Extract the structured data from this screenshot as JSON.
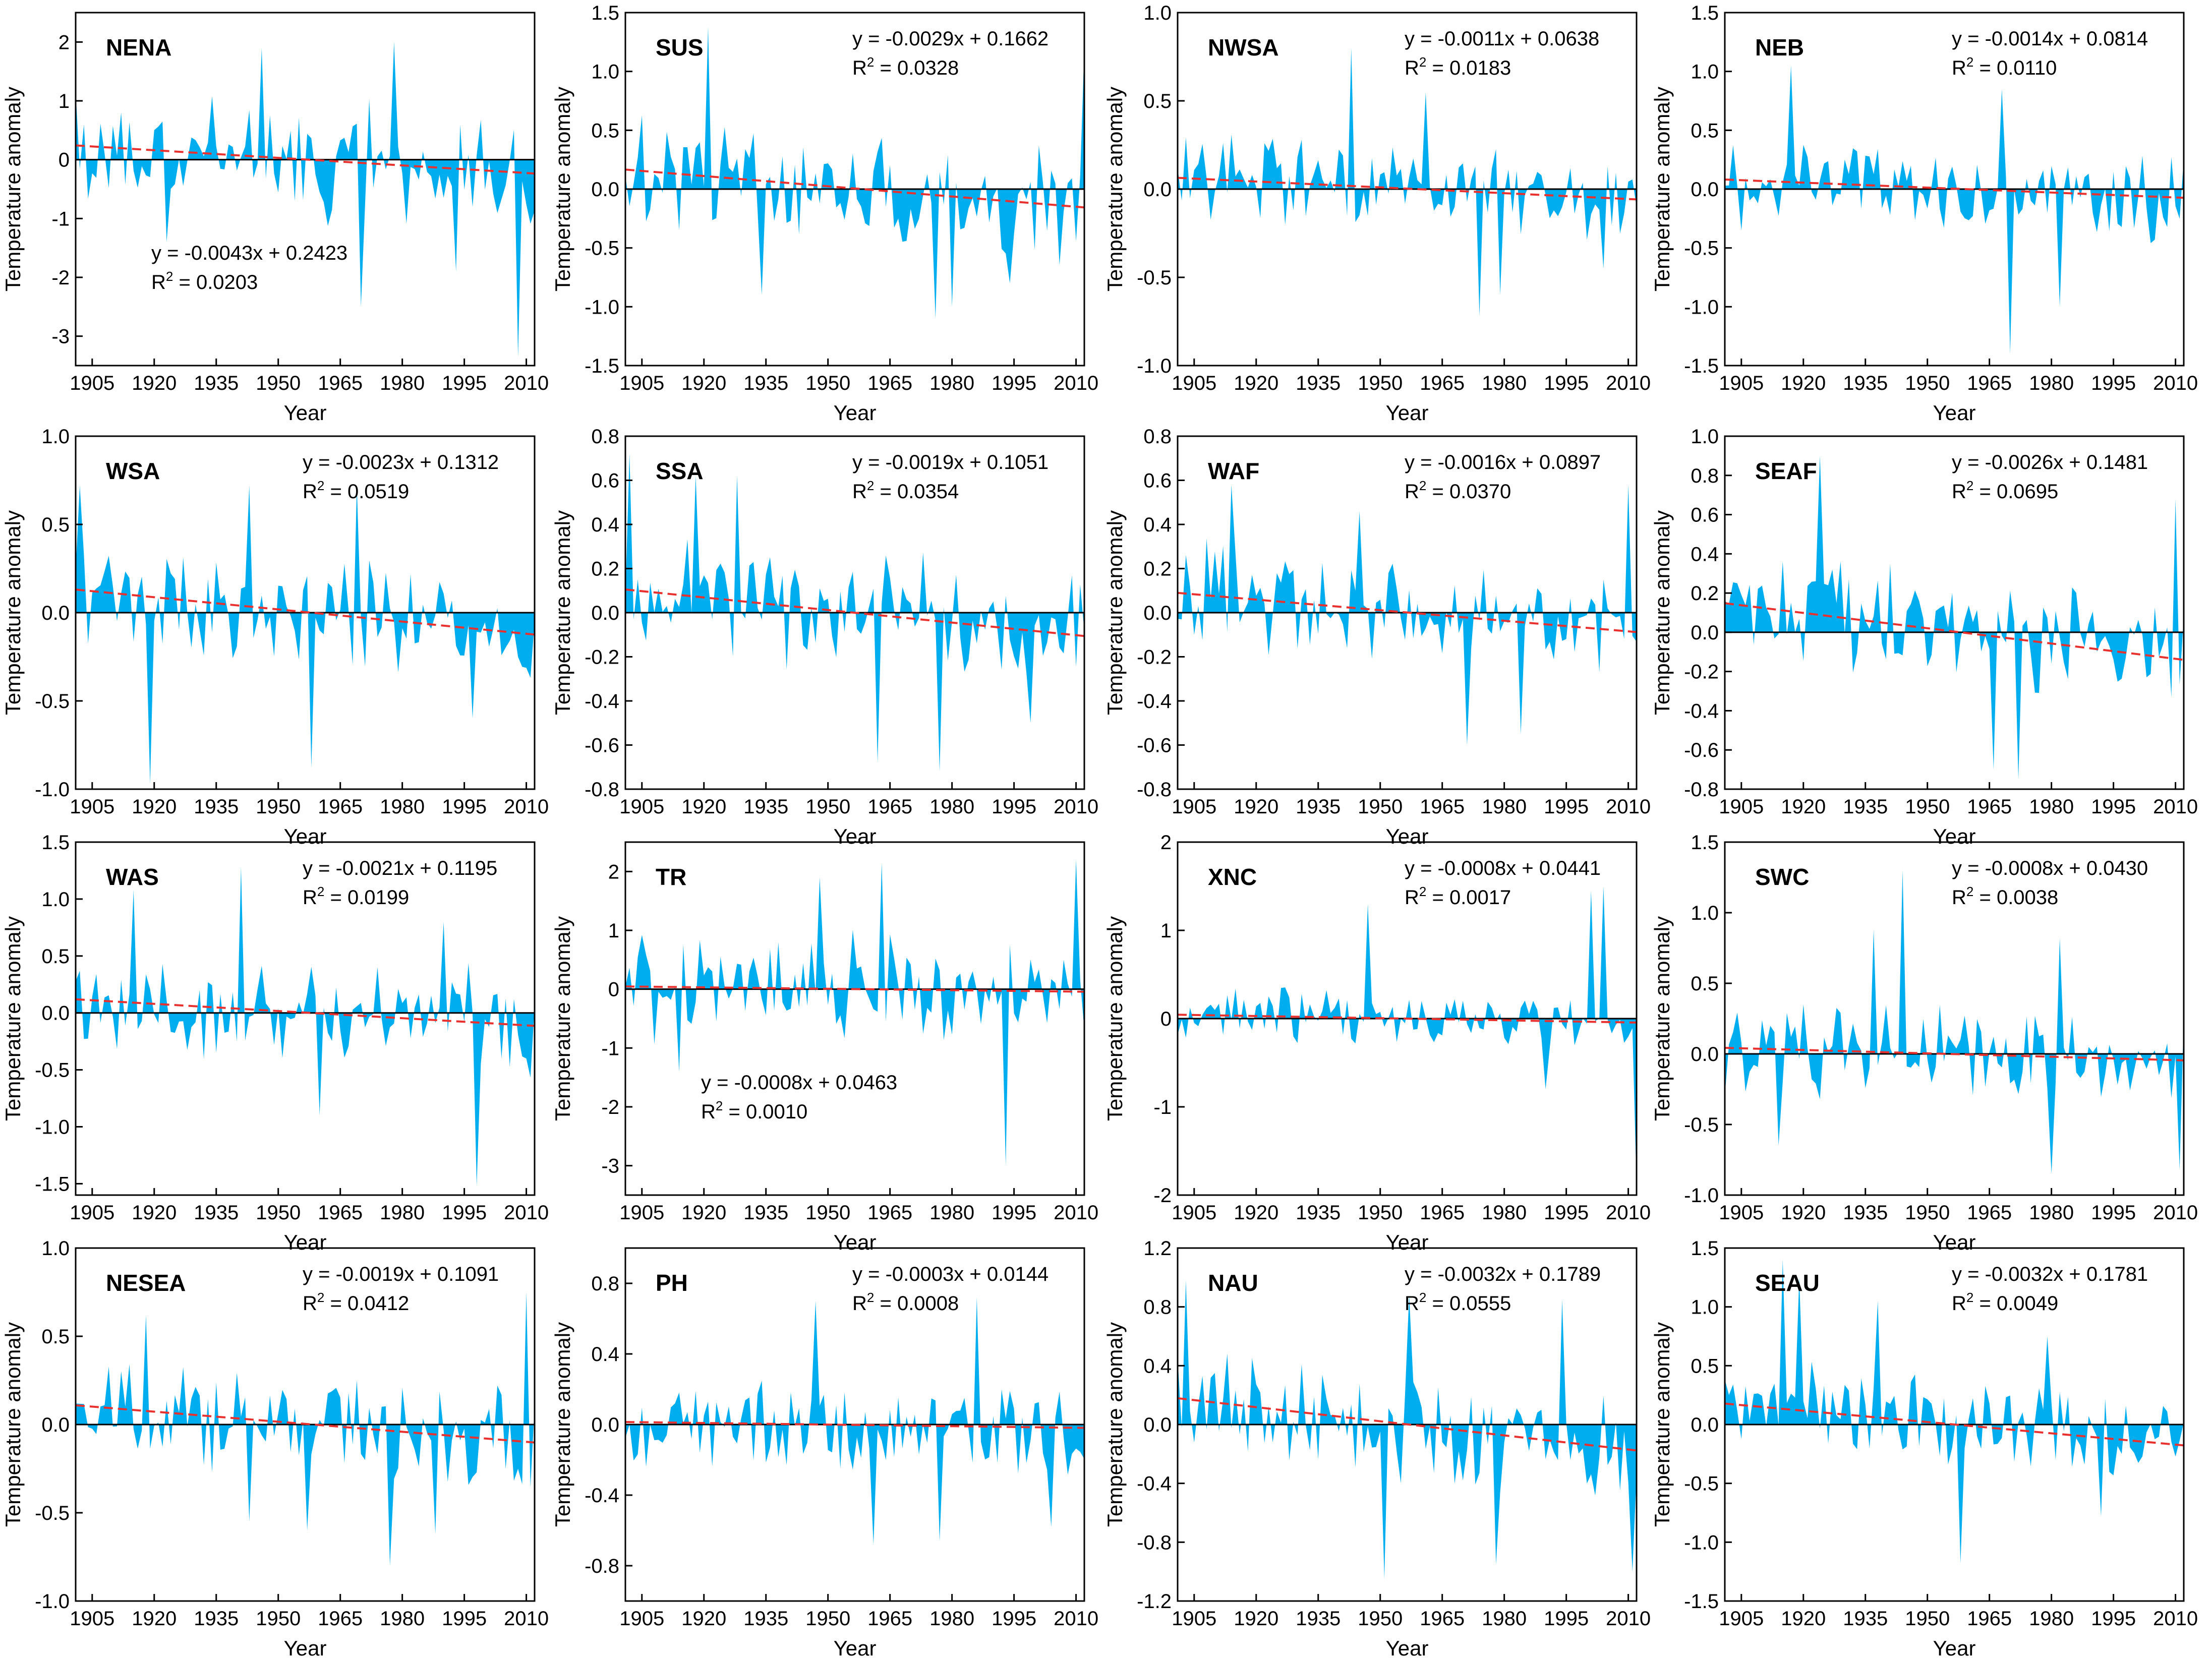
{
  "figure": {
    "x_axis_label": "Year",
    "y_axis_label": "Temperature anomaly",
    "x_ticks": [
      "1905",
      "1920",
      "1935",
      "1950",
      "1965",
      "1980",
      "1995",
      "2010"
    ],
    "colors": {
      "area_fill": "#00aeef",
      "trend_line": "#e8312f",
      "axes": "#000000"
    }
  },
  "chart_data": [
    {
      "type": "area",
      "title": "NENA",
      "equation": "y = -0.0043x + 0.2423",
      "r2_label": "R",
      "r2_value": " = 0.0203",
      "slope": -0.0043,
      "intercept": 0.2423,
      "ylim": [
        -3.5,
        2.5
      ],
      "yticks": [
        "-3",
        "-2",
        "-1",
        "0",
        "1",
        "2"
      ],
      "eq_pos": "lower-left",
      "x_range": [
        1901,
        2012
      ],
      "seed": 11,
      "amplitude": 0.75,
      "peaks": [
        [
          1978,
          2.0
        ],
        [
          1946,
          1.9
        ],
        [
          1970,
          -2.5
        ],
        [
          2008,
          -3.35
        ],
        [
          1993,
          -1.9
        ],
        [
          1923,
          -1.4
        ]
      ]
    },
    {
      "type": "area",
      "title": "SUS",
      "equation": "y = -0.0029x + 0.1662",
      "r2_label": "R",
      "r2_value": " = 0.0328",
      "slope": -0.0029,
      "intercept": 0.1662,
      "ylim": [
        -1.5,
        1.5
      ],
      "yticks": [
        "-1.5",
        "-1.0",
        "-0.5",
        "0.0",
        "0.5",
        "1.0",
        "1.5"
      ],
      "eq_pos": "top-right",
      "x_range": [
        1901,
        2012
      ],
      "seed": 23,
      "amplitude": 0.4,
      "peaks": [
        [
          1921,
          1.38
        ],
        [
          2012,
          1.2
        ],
        [
          1976,
          -1.1
        ],
        [
          1980,
          -1.0
        ],
        [
          1934,
          -0.9
        ],
        [
          1994,
          -0.8
        ]
      ]
    },
    {
      "type": "area",
      "title": "NWSA",
      "equation": "y = -0.0011x + 0.0638",
      "r2_label": "R",
      "r2_value": " = 0.0183",
      "slope": -0.0011,
      "intercept": 0.0638,
      "ylim": [
        -1.0,
        1.0
      ],
      "yticks": [
        "-1.0",
        "-0.5",
        "0.0",
        "0.5",
        "1.0"
      ],
      "eq_pos": "top-right",
      "x_range": [
        1901,
        2012
      ],
      "seed": 37,
      "amplitude": 0.2,
      "peaks": [
        [
          1943,
          0.8
        ],
        [
          1974,
          -0.72
        ],
        [
          1979,
          -0.6
        ],
        [
          1961,
          0.55
        ],
        [
          2004,
          -0.45
        ]
      ]
    },
    {
      "type": "area",
      "title": "NEB",
      "equation": "y = -0.0014x + 0.0814",
      "r2_label": "R",
      "r2_value": " = 0.0110",
      "slope": -0.0014,
      "intercept": 0.0814,
      "ylim": [
        -1.5,
        1.5
      ],
      "yticks": [
        "-1.5",
        "-1.0",
        "-0.5",
        "0.0",
        "0.5",
        "1.0",
        "1.5"
      ],
      "eq_pos": "top-right",
      "x_range": [
        1901,
        2012
      ],
      "seed": 41,
      "amplitude": 0.3,
      "peaks": [
        [
          1917,
          1.05
        ],
        [
          1970,
          -1.4
        ],
        [
          1982,
          -1.0
        ],
        [
          1968,
          0.85
        ]
      ]
    },
    {
      "type": "area",
      "title": "WSA",
      "equation": "y = -0.0023x + 0.1312",
      "r2_label": "R",
      "r2_value": " = 0.0519",
      "slope": -0.0023,
      "intercept": 0.1312,
      "ylim": [
        -1.0,
        1.0
      ],
      "yticks": [
        "-1.0",
        "-0.5",
        "0.0",
        "0.5",
        "1.0"
      ],
      "eq_pos": "top-right",
      "x_range": [
        1901,
        2012
      ],
      "seed": 53,
      "amplitude": 0.25,
      "peaks": [
        [
          1902,
          0.72
        ],
        [
          1919,
          -0.97
        ],
        [
          1958,
          -0.88
        ],
        [
          1969,
          0.72
        ],
        [
          1943,
          0.72
        ],
        [
          1997,
          -0.6
        ]
      ]
    },
    {
      "type": "area",
      "title": "SSA",
      "equation": "y = -0.0019x + 0.1051",
      "r2_label": "R",
      "r2_value": " = 0.0354",
      "slope": -0.0019,
      "intercept": 0.1051,
      "ylim": [
        -0.8,
        0.8
      ],
      "yticks": [
        "-0.8",
        "-0.6",
        "-0.4",
        "-0.2",
        "0.0",
        "0.2",
        "0.4",
        "0.6",
        "0.8"
      ],
      "eq_pos": "top-right",
      "x_range": [
        1901,
        2012
      ],
      "seed": 67,
      "amplitude": 0.22,
      "peaks": [
        [
          1902,
          0.72
        ],
        [
          1918,
          0.62
        ],
        [
          1928,
          0.62
        ],
        [
          1977,
          -0.72
        ],
        [
          1962,
          -0.68
        ],
        [
          1999,
          -0.5
        ]
      ]
    },
    {
      "type": "area",
      "title": "WAF",
      "equation": "y = -0.0016x + 0.0897",
      "r2_label": "R",
      "r2_value": " = 0.0370",
      "slope": -0.0016,
      "intercept": 0.0897,
      "ylim": [
        -0.8,
        0.8
      ],
      "yticks": [
        "-0.8",
        "-0.6",
        "-0.4",
        "-0.2",
        "0.0",
        "0.2",
        "0.4",
        "0.6",
        "0.8"
      ],
      "eq_pos": "top-right",
      "x_range": [
        1901,
        2012
      ],
      "seed": 71,
      "amplitude": 0.2,
      "peaks": [
        [
          1914,
          0.58
        ],
        [
          1971,
          -0.6
        ],
        [
          1984,
          -0.55
        ],
        [
          2010,
          0.58
        ],
        [
          1945,
          0.46
        ]
      ]
    },
    {
      "type": "area",
      "title": "SEAF",
      "equation": "y = -0.0026x + 0.1481",
      "r2_label": "R",
      "r2_value": " = 0.0695",
      "slope": -0.0026,
      "intercept": 0.1481,
      "ylim": [
        -0.8,
        1.0
      ],
      "yticks": [
        "-0.8",
        "-0.6",
        "-0.4",
        "-0.2",
        "0.0",
        "0.2",
        "0.4",
        "0.6",
        "0.8",
        "1.0"
      ],
      "eq_pos": "top-right",
      "x_range": [
        1901,
        2012
      ],
      "seed": 83,
      "amplitude": 0.22,
      "peaks": [
        [
          1924,
          0.9
        ],
        [
          1972,
          -0.75
        ],
        [
          1966,
          -0.7
        ],
        [
          2010,
          0.68
        ],
        [
          1941,
          0.35
        ]
      ]
    },
    {
      "type": "area",
      "title": "WAS",
      "equation": "y = -0.0021x + 0.1195",
      "r2_label": "R",
      "r2_value": " = 0.0199",
      "slope": -0.0021,
      "intercept": 0.1195,
      "ylim": [
        -1.6,
        1.5
      ],
      "yticks": [
        "-1.5",
        "-1.0",
        "-0.5",
        "0.0",
        "0.5",
        "1.0",
        "1.5"
      ],
      "eq_pos": "top-right",
      "x_range": [
        1901,
        2012
      ],
      "seed": 97,
      "amplitude": 0.35,
      "peaks": [
        [
          1941,
          1.28
        ],
        [
          1915,
          1.08
        ],
        [
          1998,
          -1.52
        ],
        [
          1960,
          -0.9
        ],
        [
          1990,
          0.8
        ]
      ]
    },
    {
      "type": "area",
      "title": "TR",
      "equation": "y = -0.0008x + 0.0463",
      "r2_label": "R",
      "r2_value": " = 0.0010",
      "slope": -0.0008,
      "intercept": 0.0463,
      "ylim": [
        -3.5,
        2.5
      ],
      "yticks": [
        "-3",
        "-2",
        "-1",
        "0",
        "1",
        "2"
      ],
      "eq_pos": "lower-left",
      "x_range": [
        1901,
        2012
      ],
      "seed": 101,
      "amplitude": 0.7,
      "peaks": [
        [
          1963,
          2.15
        ],
        [
          2010,
          2.2
        ],
        [
          1993,
          -3.0
        ],
        [
          1948,
          1.9
        ],
        [
          1914,
          -1.4
        ]
      ]
    },
    {
      "type": "area",
      "title": "XNC",
      "equation": "y = -0.0008x + 0.0441",
      "r2_label": "R",
      "r2_value": " = 0.0017",
      "slope": -0.0008,
      "intercept": 0.0441,
      "ylim": [
        -2.0,
        2.0
      ],
      "yticks": [
        "-2",
        "-1",
        "0",
        "1",
        "2"
      ],
      "eq_pos": "top-right",
      "x_range": [
        1901,
        2012
      ],
      "seed": 109,
      "amplitude": 0.25,
      "peaks": [
        [
          1947,
          1.3
        ],
        [
          2004,
          1.5
        ],
        [
          2001,
          1.45
        ],
        [
          2012,
          -1.9
        ],
        [
          1990,
          -0.8
        ]
      ]
    },
    {
      "type": "area",
      "title": "SWC",
      "equation": "y = -0.0008x + 0.0430",
      "r2_label": "R",
      "r2_value": " = 0.0038",
      "slope": -0.0008,
      "intercept": 0.043,
      "ylim": [
        -1.0,
        1.5
      ],
      "yticks": [
        "-1.0",
        "-0.5",
        "0.0",
        "0.5",
        "1.0",
        "1.5"
      ],
      "eq_pos": "top-right",
      "x_range": [
        1901,
        2012
      ],
      "seed": 113,
      "amplitude": 0.25,
      "peaks": [
        [
          1944,
          1.3
        ],
        [
          1937,
          0.88
        ],
        [
          1982,
          0.82
        ],
        [
          1980,
          -0.85
        ],
        [
          2011,
          -0.82
        ],
        [
          1914,
          -0.65
        ]
      ]
    },
    {
      "type": "area",
      "title": "NESEA",
      "equation": "y = -0.0019x + 0.1091",
      "r2_label": "R",
      "r2_value": " = 0.0412",
      "slope": -0.0019,
      "intercept": 0.1091,
      "ylim": [
        -1.0,
        1.0
      ],
      "yticks": [
        "-1.0",
        "-0.5",
        "0.0",
        "0.5",
        "1.0"
      ],
      "eq_pos": "top-right",
      "x_range": [
        1901,
        2012
      ],
      "seed": 127,
      "amplitude": 0.22,
      "peaks": [
        [
          1977,
          -0.8
        ],
        [
          2010,
          0.75
        ],
        [
          1918,
          0.62
        ],
        [
          1943,
          -0.55
        ],
        [
          1957,
          -0.6
        ],
        [
          1988,
          -0.62
        ]
      ]
    },
    {
      "type": "area",
      "title": "PH",
      "equation": "y = -0.0003x + 0.0144",
      "r2_label": "R",
      "r2_value": " = 0.0008",
      "slope": -0.0003,
      "intercept": 0.0144,
      "ylim": [
        -1.0,
        1.0
      ],
      "yticks": [
        "-0.8",
        "-0.4",
        "0.0",
        "0.4",
        "0.8"
      ],
      "eq_pos": "top-right",
      "x_range": [
        1901,
        2012
      ],
      "seed": 131,
      "amplitude": 0.22,
      "peaks": [
        [
          1947,
          0.7
        ],
        [
          1986,
          0.72
        ],
        [
          1961,
          -0.68
        ],
        [
          1977,
          -0.66
        ],
        [
          2004,
          -0.58
        ]
      ]
    },
    {
      "type": "area",
      "title": "NAU",
      "equation": "y = -0.0032x + 0.1789",
      "r2_label": "R",
      "r2_value": " = 0.0555",
      "slope": -0.0032,
      "intercept": 0.1789,
      "ylim": [
        -1.2,
        1.2
      ],
      "yticks": [
        "-1.2",
        "-0.8",
        "-0.4",
        "0.0",
        "0.4",
        "0.8",
        "1.2"
      ],
      "eq_pos": "top-right",
      "x_range": [
        1901,
        2012
      ],
      "seed": 137,
      "amplitude": 0.3,
      "peaks": [
        [
          1903,
          0.98
        ],
        [
          1951,
          -1.05
        ],
        [
          2011,
          -1.0
        ],
        [
          1957,
          0.88
        ],
        [
          1994,
          0.85
        ],
        [
          1978,
          -0.95
        ]
      ]
    },
    {
      "type": "area",
      "title": "SEAU",
      "equation": "y = -0.0032x + 0.1781",
      "r2_label": "R",
      "r2_value": " = 0.0049",
      "slope": -0.0032,
      "intercept": 0.1781,
      "ylim": [
        -1.5,
        1.5
      ],
      "yticks": [
        "-1.5",
        "-1.0",
        "-0.5",
        "0.0",
        "0.5",
        "1.0",
        "1.5"
      ],
      "eq_pos": "top-right",
      "x_range": [
        1901,
        2012
      ],
      "seed": 139,
      "amplitude": 0.3,
      "peaks": [
        [
          1915,
          1.4
        ],
        [
          1919,
          1.25
        ],
        [
          1938,
          1.05
        ],
        [
          1958,
          -1.18
        ],
        [
          1979,
          0.75
        ],
        [
          1992,
          -0.78
        ]
      ]
    }
  ]
}
